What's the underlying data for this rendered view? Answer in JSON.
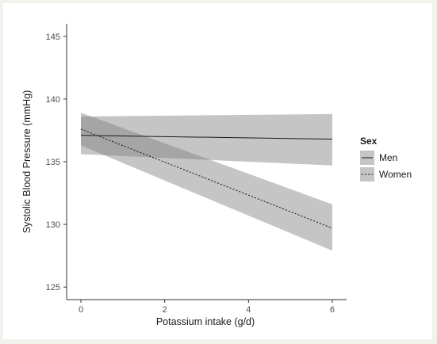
{
  "chart_data": {
    "type": "line",
    "xlabel": "Potassium intake (g/d)",
    "ylabel": "Systolic Blood Pressure (mmHg)",
    "xlim": [
      0,
      6
    ],
    "ylim": [
      124,
      146
    ],
    "x_ticks": [
      0,
      2,
      4,
      6
    ],
    "y_ticks": [
      125,
      130,
      135,
      140,
      145
    ],
    "grid": false,
    "legend": {
      "title": "Sex",
      "placement": "right",
      "entries": [
        "Men",
        "Women"
      ]
    },
    "series": [
      {
        "name": "Men",
        "line_style": "solid",
        "x": [
          0,
          6
        ],
        "y": [
          137.1,
          136.8
        ],
        "ci_lower": [
          135.6,
          134.7
        ],
        "ci_upper": [
          138.6,
          138.8
        ]
      },
      {
        "name": "Women",
        "line_style": "dotted",
        "x": [
          0,
          6
        ],
        "y": [
          137.6,
          129.7
        ],
        "ci_lower": [
          136.3,
          127.9
        ],
        "ci_upper": [
          138.9,
          131.6
        ]
      }
    ],
    "colors": {
      "ribbon": "#7f7f7f",
      "line": "#1a1a1a",
      "axis": "#333333"
    }
  }
}
